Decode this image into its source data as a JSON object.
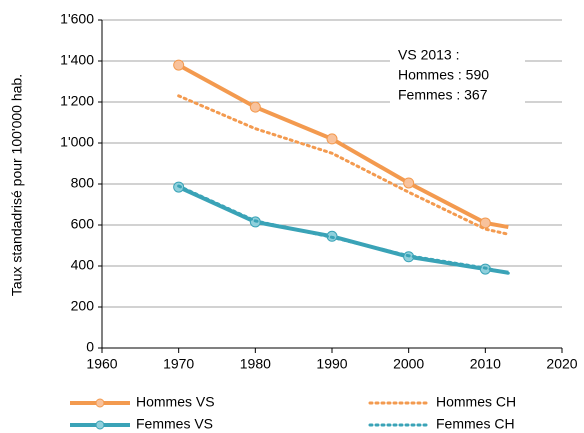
{
  "chart_data": {
    "type": "line",
    "ylabel": "Taux standadrisé pour 100'000 hab.",
    "x": [
      1970,
      1980,
      1990,
      2000,
      2010,
      2013
    ],
    "series": [
      {
        "name": "Hommes VS",
        "color": "#f39a4f",
        "marker_color": "#f8c29c",
        "style": "solid",
        "values": [
          1380,
          1175,
          1020,
          805,
          610,
          590
        ]
      },
      {
        "name": "Hommes CH",
        "color": "#f39a4f",
        "style": "dotted",
        "values": [
          1230,
          1070,
          950,
          760,
          580,
          555
        ]
      },
      {
        "name": "Femmes VS",
        "color": "#3aa3b7",
        "marker_color": "#8fd0dc",
        "style": "solid",
        "values": [
          785,
          615,
          545,
          445,
          385,
          367
        ]
      },
      {
        "name": "Femmes CH",
        "color": "#3aa3b7",
        "style": "dotted",
        "values": [
          790,
          620,
          540,
          450,
          390,
          365
        ]
      }
    ],
    "annotations": [
      "VS 2013 :",
      "Hommes : 590",
      "Femmes : 367"
    ],
    "xlim": [
      1960,
      2020
    ],
    "xticks": [
      1960,
      1970,
      1980,
      1990,
      2000,
      2010,
      2020
    ],
    "ylim": [
      0,
      1600
    ],
    "yticks": [
      0,
      200,
      400,
      600,
      800,
      {
        "value": 1000,
        "label": "1'000"
      },
      {
        "value": 1200,
        "label": "1'200"
      },
      {
        "value": 1400,
        "label": "1'400"
      },
      {
        "value": 1600,
        "label": "1'600"
      }
    ],
    "grid": true,
    "legend": "bottom"
  }
}
